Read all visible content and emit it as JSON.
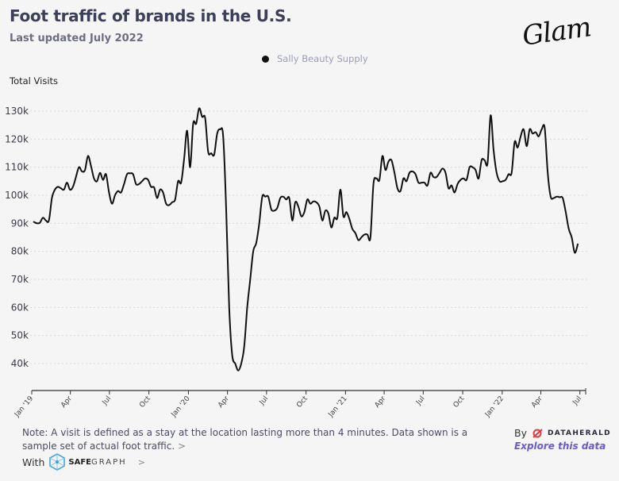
{
  "header": {
    "title": "Foot traffic of brands in the U.S.",
    "subtitle": "Last updated July 2022",
    "brand_logo_text": "Glam"
  },
  "legend": {
    "series_name": "Sally Beauty Supply",
    "dot_color": "#111111"
  },
  "y_axis_label": "Total Visits",
  "footer": {
    "note": "Note: A visit is defined as a stay at the location lasting more than 4 minutes. Data shown is a sample set of actual foot traffic.",
    "note_chevron": ">",
    "with_label": "With",
    "safegraph_bold": "SAFE",
    "safegraph_rest": "GRAPH",
    "with_chevron": ">",
    "by_label": "By",
    "dataherald_name": "DATAHERALD",
    "explore_link": "Explore this data",
    "link_color": "#6a5acd",
    "dataherald_color": "#e03a3e",
    "safegraph_color": "#3aa0d8"
  },
  "chart_data": {
    "type": "line",
    "title": "Foot traffic of brands in the U.S.",
    "subtitle": "Last updated July 2022",
    "xlabel": "",
    "ylabel": "Total Visits",
    "ylim": [
      33000,
      133000
    ],
    "yticks": [
      40000,
      50000,
      60000,
      70000,
      80000,
      90000,
      100000,
      110000,
      120000,
      130000
    ],
    "ytick_labels": [
      "40k",
      "50k",
      "60k",
      "70k",
      "80k",
      "90k",
      "100k",
      "110k",
      "120k",
      "130k"
    ],
    "x_start": "2019-01-01",
    "x_end": "2022-07-20",
    "xticks": [
      "2019-01-01",
      "2019-04-01",
      "2019-07-01",
      "2019-10-01",
      "2020-01-01",
      "2020-04-01",
      "2020-07-01",
      "2020-10-01",
      "2021-01-01",
      "2021-04-01",
      "2021-07-01",
      "2021-10-01",
      "2022-01-01",
      "2022-04-01",
      "2022-07-01"
    ],
    "xtick_labels": [
      "Jan '19",
      "Apr",
      "Jul",
      "Oct",
      "Jan '20",
      "Apr",
      "Jul",
      "Oct",
      "Jan '21",
      "Apr",
      "Jul",
      "Oct",
      "Jan '22",
      "Apr",
      "Jul"
    ],
    "grid": "horizontal-dotted",
    "legend_position": "top-center",
    "series": [
      {
        "name": "Sally Beauty Supply",
        "color": "#111111",
        "frequency": "weekly",
        "start": "2019-01-06",
        "values": [
          90500,
          90000,
          90200,
          92000,
          91000,
          91000,
          99000,
          102000,
          103000,
          102500,
          102000,
          104500,
          102000,
          103000,
          106500,
          110000,
          108500,
          109000,
          114000,
          110500,
          106000,
          105000,
          108000,
          105500,
          107500,
          101000,
          97000,
          100000,
          101500,
          101000,
          104000,
          107500,
          107800,
          107500,
          104000,
          104000,
          105000,
          106000,
          105500,
          103000,
          102800,
          99000,
          102000,
          101000,
          97000,
          96500,
          97500,
          98500,
          105000,
          104500,
          113000,
          123000,
          110000,
          125500,
          125500,
          131000,
          128000,
          127500,
          115500,
          115000,
          114500,
          122000,
          123500,
          121000,
          95000,
          60000,
          43000,
          40000,
          37500,
          40000,
          46000,
          60000,
          70000,
          80000,
          83000,
          90000,
          99500,
          99500,
          99500,
          95000,
          94500,
          95500,
          99000,
          99500,
          98500,
          99000,
          91000,
          97500,
          96000,
          92500,
          94000,
          98500,
          97000,
          97800,
          97500,
          96000,
          91000,
          94500,
          93500,
          88500,
          92000,
          92000,
          102000,
          92500,
          94000,
          91500,
          88000,
          86500,
          84000,
          85000,
          86000,
          86000,
          85000,
          104000,
          106000,
          105500,
          114000,
          109000,
          112000,
          112500,
          108000,
          102500,
          101500,
          106000,
          105000,
          108000,
          108500,
          107500,
          104500,
          104500,
          104500,
          103500,
          108000,
          106500,
          106500,
          108000,
          109500,
          108000,
          102500,
          103500,
          101000,
          104000,
          105500,
          106000,
          105500,
          110000,
          110000,
          109000,
          106000,
          112500,
          112500,
          111500,
          128500,
          116000,
          108000,
          105000,
          105000,
          105500,
          107500,
          108000,
          119000,
          117000,
          121000,
          123500,
          117500,
          123500,
          122000,
          122500,
          121000,
          123500,
          124000,
          108000,
          99500,
          99000,
          99500,
          99300,
          99000,
          94000,
          88000,
          85000,
          79500,
          82500
        ]
      }
    ]
  }
}
